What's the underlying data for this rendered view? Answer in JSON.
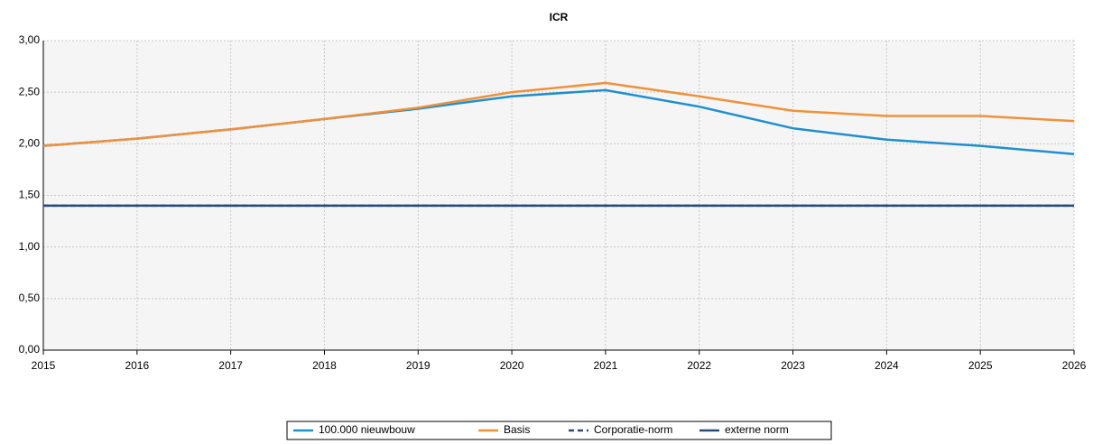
{
  "chart_data": {
    "type": "line",
    "title": "ICR",
    "x": [
      2015,
      2016,
      2017,
      2018,
      2019,
      2020,
      2021,
      2022,
      2023,
      2024,
      2025,
      2026
    ],
    "xlim": [
      2015,
      2026
    ],
    "xticks": [
      2015,
      2016,
      2017,
      2018,
      2019,
      2020,
      2021,
      2022,
      2023,
      2024,
      2025,
      2026
    ],
    "ylim": [
      0,
      3
    ],
    "yticks": [
      {
        "value": 0,
        "label": "0,00"
      },
      {
        "value": 0.5,
        "label": "0,50"
      },
      {
        "value": 1,
        "label": "1,00"
      },
      {
        "value": 1.5,
        "label": "1,50"
      },
      {
        "value": 2,
        "label": "2,00"
      },
      {
        "value": 2.5,
        "label": "2,50"
      },
      {
        "value": 3,
        "label": "3,00"
      }
    ],
    "grid": true,
    "legend": "bottom",
    "series": [
      {
        "name": "100.000 nieuwbouw",
        "color": "#1f8fce",
        "values": [
          1.98,
          2.05,
          2.14,
          2.24,
          2.34,
          2.46,
          2.52,
          2.36,
          2.15,
          2.04,
          1.98,
          1.9
        ]
      },
      {
        "name": "Basis",
        "color": "#f0913a",
        "values": [
          1.98,
          2.05,
          2.14,
          2.24,
          2.35,
          2.5,
          2.59,
          2.46,
          2.32,
          2.27,
          2.27,
          2.22
        ]
      },
      {
        "name": "Corporatie-norm",
        "color": "#2a4a7a",
        "dashed": true,
        "values": [
          1.4,
          1.4,
          1.4,
          1.4,
          1.4,
          1.4,
          1.4,
          1.4,
          1.4,
          1.4,
          1.4,
          1.4
        ]
      },
      {
        "name": "externe norm",
        "color": "#2a4a7a",
        "values": [
          1.4,
          1.4,
          1.4,
          1.4,
          1.4,
          1.4,
          1.4,
          1.4,
          1.4,
          1.4,
          1.4,
          1.4
        ]
      }
    ]
  }
}
